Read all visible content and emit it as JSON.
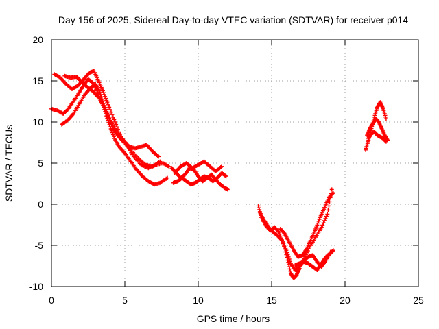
{
  "chart_data": {
    "type": "scatter",
    "title": "Day 156 of 2025, Sidereal Day-to-day VTEC variation (SDTVAR) for receiver p014",
    "xlabel": "GPS time / hours",
    "ylabel": "SDTVAR / TECUs",
    "xlim": [
      0,
      25
    ],
    "ylim": [
      -10,
      20
    ],
    "xticks": [
      0,
      5,
      10,
      15,
      20,
      25
    ],
    "yticks": [
      -10,
      -5,
      0,
      5,
      10,
      15,
      20
    ],
    "grid": true,
    "marker": "+",
    "color": "#ff0000",
    "series": [
      {
        "segment": "track-a",
        "x": [
          0.0,
          0.4,
          0.8,
          1.1,
          1.5,
          1.9,
          2.2,
          2.5,
          2.8,
          3.1,
          3.4,
          3.7,
          4.0,
          4.3,
          4.6,
          5.0,
          5.4,
          5.8,
          6.2,
          6.6,
          7.0,
          7.4,
          7.9
        ],
        "y": [
          11.6,
          11.4,
          11.0,
          11.5,
          12.5,
          13.6,
          14.5,
          15.2,
          14.8,
          13.8,
          12.5,
          11.0,
          9.4,
          8.0,
          7.0,
          6.2,
          5.2,
          4.2,
          3.4,
          2.8,
          2.4,
          2.6,
          3.2
        ]
      },
      {
        "segment": "track-b",
        "x": [
          0.2,
          0.6,
          1.0,
          1.4,
          1.8,
          2.2,
          2.6,
          2.9,
          3.2,
          3.5,
          3.8,
          4.2,
          4.6,
          5.1,
          5.6,
          6.1,
          6.6,
          7.1,
          7.6,
          8.0
        ],
        "y": [
          15.8,
          15.4,
          14.6,
          14.0,
          14.4,
          15.2,
          16.0,
          16.2,
          15.0,
          13.8,
          12.4,
          10.6,
          8.8,
          7.2,
          5.8,
          4.8,
          4.4,
          4.8,
          5.0,
          4.6
        ]
      },
      {
        "segment": "track-c",
        "x": [
          0.7,
          1.1,
          1.5,
          1.9,
          2.3,
          2.7,
          3.0,
          3.3,
          3.6,
          3.9,
          4.2,
          4.5,
          4.9,
          5.4,
          5.9,
          6.4,
          6.9,
          7.4
        ],
        "y": [
          9.7,
          10.2,
          11.0,
          12.2,
          13.4,
          14.2,
          14.6,
          13.6,
          12.0,
          10.6,
          9.2,
          8.4,
          7.6,
          6.6,
          5.6,
          4.8,
          4.6,
          5.2
        ]
      },
      {
        "segment": "track-d",
        "x": [
          0.9,
          1.3,
          1.7,
          2.0,
          2.4,
          2.8,
          3.2,
          3.6,
          4.0,
          4.4,
          4.9,
          5.3,
          5.7,
          6.1,
          6.5,
          6.9,
          7.3
        ],
        "y": [
          15.6,
          15.4,
          15.5,
          15.0,
          14.3,
          13.8,
          13.0,
          11.8,
          10.2,
          9.0,
          7.8,
          7.0,
          6.8,
          7.0,
          7.2,
          6.4,
          5.8
        ]
      },
      {
        "segment": "track-e",
        "x": [
          8.2,
          8.5,
          8.8,
          9.1,
          9.4,
          9.7,
          10.0,
          10.3,
          10.6,
          10.9,
          11.2,
          11.5,
          11.8,
          12.0
        ],
        "y": [
          4.4,
          3.8,
          3.2,
          3.6,
          4.4,
          4.2,
          3.4,
          2.8,
          3.2,
          3.6,
          3.0,
          2.4,
          2.0,
          1.8
        ]
      },
      {
        "segment": "track-f",
        "x": [
          8.3,
          8.6,
          8.9,
          9.2,
          9.5,
          9.8,
          10.1,
          10.4,
          10.7,
          11.0,
          11.3,
          11.6,
          11.9
        ],
        "y": [
          2.6,
          2.8,
          3.2,
          2.8,
          2.4,
          2.6,
          3.0,
          3.4,
          3.2,
          2.8,
          3.2,
          3.8,
          3.4
        ]
      },
      {
        "segment": "track-g",
        "x": [
          8.4,
          8.8,
          9.2,
          9.6,
          10.0,
          10.4,
          10.8,
          11.2,
          11.6
        ],
        "y": [
          3.8,
          4.6,
          5.0,
          4.4,
          4.8,
          5.2,
          4.6,
          4.0,
          4.6
        ]
      },
      {
        "segment": "track-h",
        "x": [
          14.1,
          14.3,
          14.6,
          14.9,
          15.2,
          15.5,
          15.8,
          16.1,
          16.3,
          16.5,
          16.7,
          16.9,
          17.2,
          17.6,
          18.0,
          18.4,
          18.8,
          19.1
        ],
        "y": [
          -0.2,
          -1.6,
          -2.6,
          -3.2,
          -2.8,
          -3.4,
          -4.8,
          -6.8,
          -8.4,
          -9.0,
          -8.6,
          -7.8,
          -6.6,
          -5.2,
          -4.0,
          -2.8,
          -1.2,
          1.8
        ]
      },
      {
        "segment": "track-i",
        "x": [
          14.2,
          14.5,
          14.8,
          15.1,
          15.4,
          15.7,
          16.0,
          16.3,
          16.6,
          16.9,
          17.2,
          17.5,
          17.8,
          18.1,
          18.4,
          18.7,
          19.0
        ],
        "y": [
          -1.0,
          -2.0,
          -2.8,
          -3.4,
          -3.8,
          -4.4,
          -5.6,
          -7.2,
          -8.0,
          -7.6,
          -6.8,
          -6.4,
          -6.2,
          -7.0,
          -7.6,
          -6.8,
          -5.8
        ]
      },
      {
        "segment": "track-j",
        "x": [
          15.6,
          15.9,
          16.2,
          16.5,
          16.8,
          17.1,
          17.4,
          17.7,
          18.0,
          18.3,
          18.6,
          18.9,
          19.2
        ],
        "y": [
          -3.0,
          -3.6,
          -4.6,
          -5.6,
          -6.4,
          -6.2,
          -5.4,
          -4.2,
          -3.0,
          -1.6,
          -0.4,
          0.8,
          1.4
        ]
      },
      {
        "segment": "track-k",
        "x": [
          16.6,
          16.9,
          17.2,
          17.5,
          17.8,
          18.1,
          18.4,
          18.7,
          19.0,
          19.2
        ],
        "y": [
          -7.4,
          -7.2,
          -7.0,
          -7.2,
          -7.6,
          -8.0,
          -7.2,
          -6.4,
          -6.0,
          -5.6
        ]
      },
      {
        "segment": "track-l",
        "x": [
          21.4,
          21.6,
          21.8,
          22.0,
          22.2,
          22.4,
          22.6,
          22.8
        ],
        "y": [
          6.6,
          7.8,
          9.2,
          10.6,
          11.8,
          12.4,
          11.6,
          10.4
        ]
      },
      {
        "segment": "track-m",
        "x": [
          21.5,
          21.7,
          21.9,
          22.1,
          22.3,
          22.5,
          22.7,
          22.9
        ],
        "y": [
          8.4,
          9.2,
          9.8,
          10.4,
          10.0,
          9.2,
          8.4,
          7.8
        ]
      },
      {
        "segment": "track-n",
        "x": [
          21.6,
          21.8,
          22.0,
          22.2,
          22.4,
          22.6,
          22.8
        ],
        "y": [
          8.0,
          8.6,
          8.8,
          8.4,
          8.2,
          8.0,
          7.6
        ]
      }
    ]
  }
}
